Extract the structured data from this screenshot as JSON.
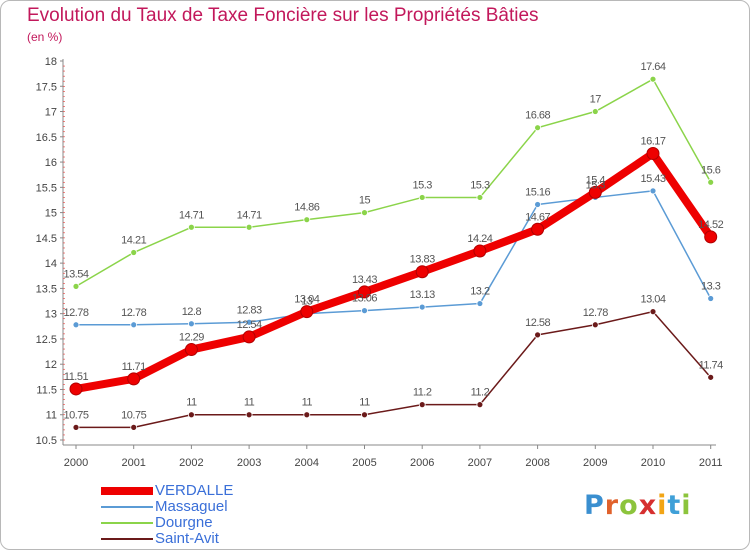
{
  "title": "Evolution du Taux de Taxe Foncière sur les Propriétés Bâties",
  "subtitle": "(en %)",
  "logo": {
    "letters": [
      "P",
      "r",
      "o",
      "x",
      "i",
      "t",
      "i"
    ],
    "colors": [
      "#3a8fd0",
      "#e0612b",
      "#8cc43c",
      "#d62f2f",
      "#f2a516",
      "#3fa0d8",
      "#8cc43c"
    ]
  },
  "chart_data": {
    "type": "line",
    "title": "Evolution du Taux de Taxe Foncière sur les Propriétés Bâties",
    "subtitle": "(en %)",
    "xlabel": "",
    "ylabel": "",
    "x": [
      "2000",
      "2001",
      "2002",
      "2003",
      "2004",
      "2005",
      "2006",
      "2007",
      "2008",
      "2009",
      "2010",
      "2011"
    ],
    "ylim": [
      10.5,
      18
    ],
    "yticks": [
      "10.5",
      "11",
      "11.5",
      "12",
      "12.5",
      "13",
      "13.5",
      "14",
      "14.5",
      "15",
      "15.5",
      "16",
      "16.5",
      "17",
      "17.5",
      "18"
    ],
    "grid": false,
    "legend_position": "bottom-left",
    "series": [
      {
        "name": "VERDALLE",
        "color": "#ee0000",
        "values": [
          11.51,
          11.71,
          12.29,
          12.54,
          13.04,
          13.43,
          13.83,
          14.24,
          14.67,
          15.4,
          16.17,
          14.52
        ],
        "labels": [
          "11.51",
          "11.71",
          "12.29",
          "12.54",
          "13.04",
          "13.43",
          "13.83",
          "14.24",
          "14.67",
          "15.4",
          "16.17",
          "14.52"
        ]
      },
      {
        "name": "Massaguel",
        "color": "#5b9bd5",
        "values": [
          12.78,
          12.78,
          12.8,
          12.83,
          13.0,
          13.06,
          13.13,
          13.2,
          15.16,
          15.3,
          15.43,
          13.3
        ],
        "labels": [
          "12.78",
          "12.78",
          "12.8",
          "12.83",
          "13",
          "13.06",
          "13.13",
          "13.2",
          "15.16",
          "15.3",
          "15.43",
          "13.3"
        ]
      },
      {
        "name": "Dourgne",
        "color": "#8bd44a",
        "values": [
          13.54,
          14.21,
          14.71,
          14.71,
          14.86,
          15.0,
          15.3,
          15.3,
          16.68,
          17.0,
          17.64,
          15.6
        ],
        "labels": [
          "13.54",
          "14.21",
          "14.71",
          "14.71",
          "14.86",
          "15",
          "15.3",
          "15.3",
          "16.68",
          "17",
          "17.64",
          "15.6"
        ]
      },
      {
        "name": "Saint-Avit",
        "color": "#6b1a1a",
        "values": [
          10.75,
          10.75,
          11.0,
          11.0,
          11.0,
          11.0,
          11.2,
          11.2,
          12.58,
          12.78,
          13.04,
          11.74
        ],
        "labels": [
          "10.75",
          "10.75",
          "11",
          "11",
          "11",
          "11",
          "11.2",
          "11.2",
          "12.58",
          "12.78",
          "13.04",
          "11.74"
        ]
      }
    ]
  }
}
